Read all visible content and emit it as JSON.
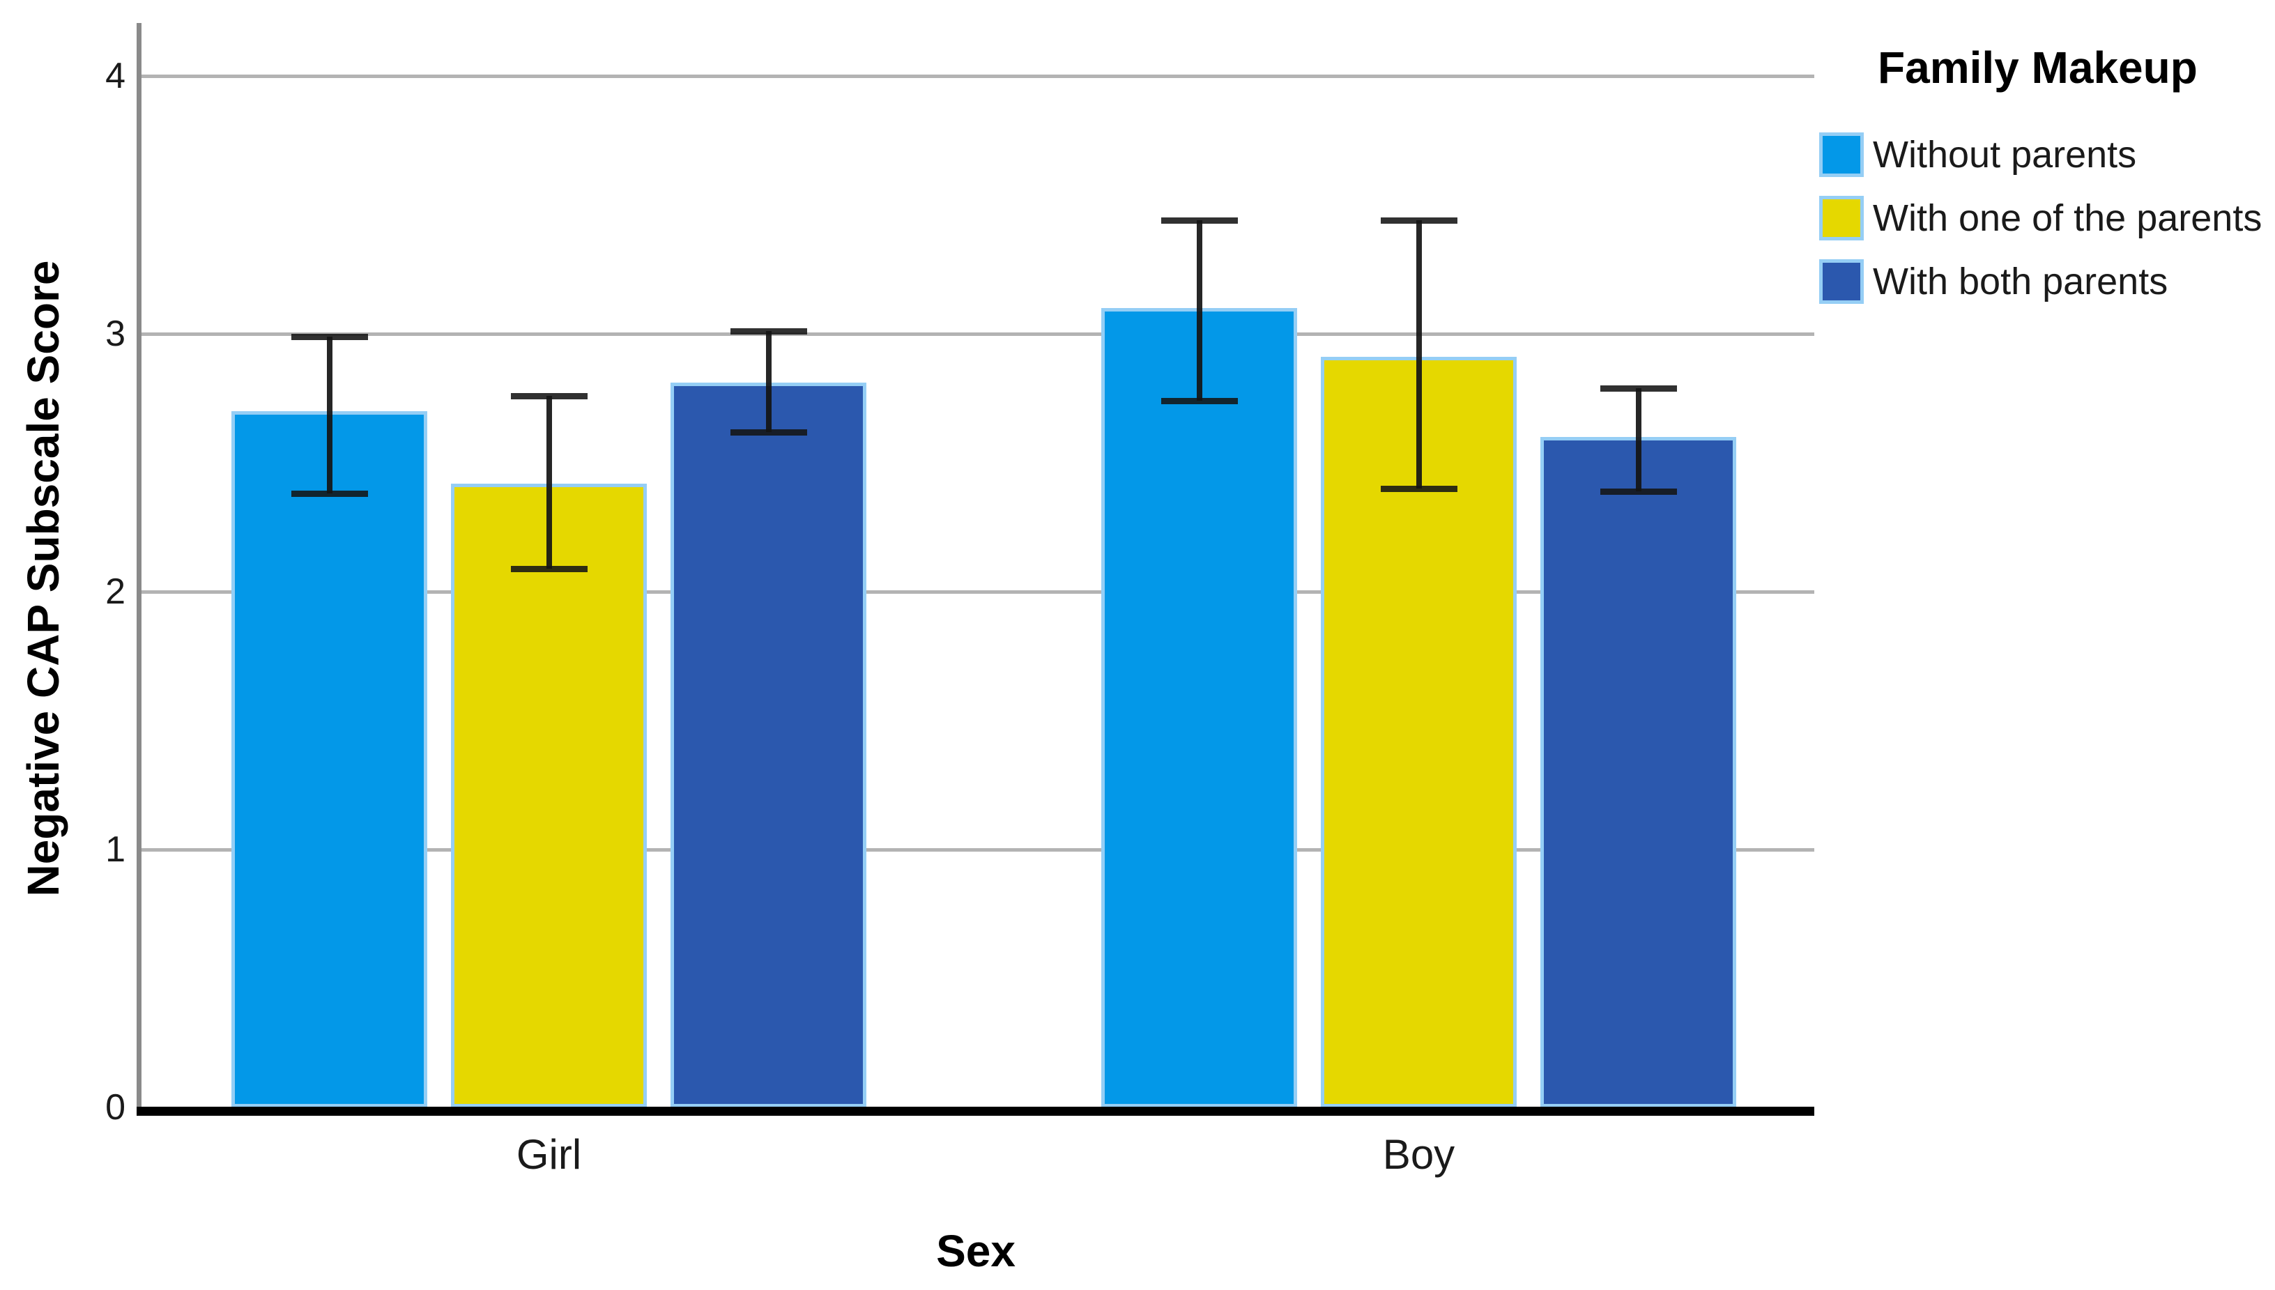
{
  "chart_data": {
    "type": "bar",
    "title": "",
    "categories": [
      "Girl",
      "Boy"
    ],
    "series": [
      {
        "name": "Without parents",
        "color": "#0398E8",
        "values": [
          2.7,
          3.1
        ],
        "err_low": [
          2.38,
          2.74
        ],
        "err_high": [
          2.99,
          3.44
        ]
      },
      {
        "name": "With one of the parents",
        "color": "#E5D800",
        "values": [
          2.42,
          2.91
        ],
        "err_low": [
          2.09,
          2.4
        ],
        "err_high": [
          2.76,
          3.44
        ]
      },
      {
        "name": "With both parents",
        "color": "#2B58AE",
        "values": [
          2.81,
          2.6
        ],
        "err_low": [
          2.62,
          2.39
        ],
        "err_high": [
          3.01,
          2.79
        ]
      }
    ],
    "xlabel": "Sex",
    "ylabel": "Negative CAP Subscale Score",
    "ylim": [
      0,
      4.2
    ],
    "yticks": [
      0,
      1,
      2,
      3,
      4
    ],
    "ytick_labels": [
      "0",
      "1",
      "2",
      "3",
      "4"
    ],
    "grid": true,
    "error_bars": true,
    "legend_title": "Family Makeup",
    "legend_position": "top-right",
    "legend_items": [
      "Without parents",
      "With one of the parents",
      "With both parents"
    ],
    "colors": {
      "bar_outline": "#95CEF5",
      "gridline": "#B3B3B3",
      "axis_line": "#8A8A8A",
      "baseline": "#000000",
      "error_bar": "#1A1A1A",
      "text": "#1A1A1A",
      "background": "#FFFFFF"
    }
  }
}
